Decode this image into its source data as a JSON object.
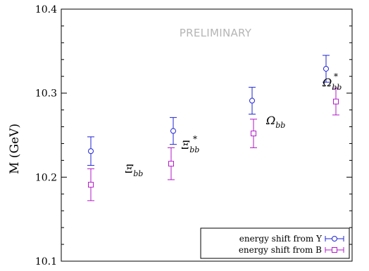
{
  "chart_data": {
    "type": "scatter",
    "title": "",
    "watermark": "PRELIMINARY",
    "ylabel": "M (GeV)",
    "xlabel": "",
    "ylim": [
      10.1,
      10.4
    ],
    "yticks": [
      "10.1",
      "10.2",
      "10.3",
      "10.4"
    ],
    "grid": false,
    "legend_position": "bottom-right",
    "categories": [
      "Ξbb",
      "Ξ*bb",
      "Ωbb",
      "Ω*bb"
    ],
    "annotations": [
      {
        "base": "Ξ",
        "sub": "bb",
        "sup": ""
      },
      {
        "base": "Ξ",
        "sub": "bb",
        "sup": "*"
      },
      {
        "base": "Ω",
        "sub": "bb",
        "sup": ""
      },
      {
        "base": "Ω",
        "sub": "bb",
        "sup": "*"
      }
    ],
    "series": [
      {
        "name": "energy shift from Υ",
        "marker": "circle",
        "color": "#1f24d6",
        "values": [
          10.231,
          10.255,
          10.291,
          10.329
        ],
        "errors": [
          0.017,
          0.016,
          0.016,
          0.016
        ]
      },
      {
        "name": "energy shift from B",
        "marker": "square",
        "color": "#b31ac9",
        "values": [
          10.191,
          10.216,
          10.252,
          10.29
        ],
        "errors": [
          0.019,
          0.019,
          0.017,
          0.016
        ]
      }
    ]
  }
}
